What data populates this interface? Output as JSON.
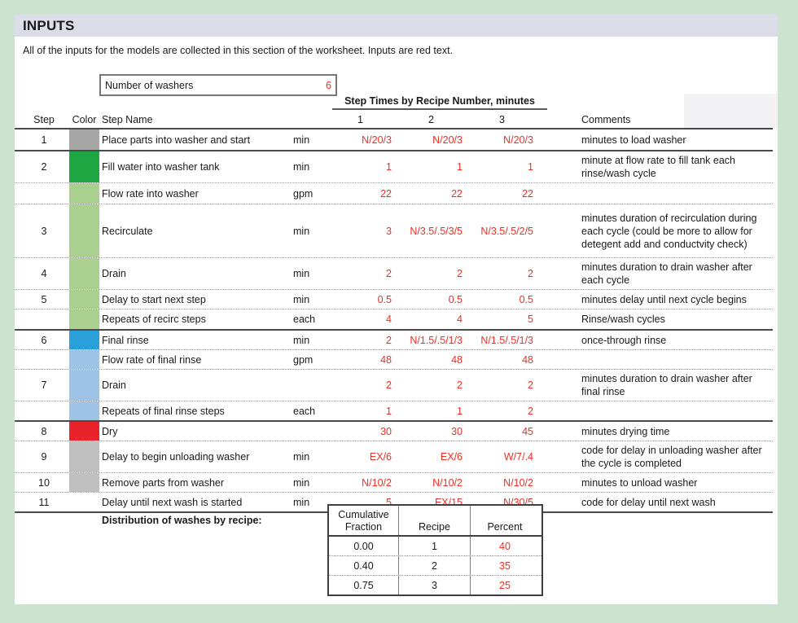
{
  "page": {
    "title": "INPUTS",
    "subtitle": "All of the inputs for the models are collected in this section of the worksheet. Inputs are red text."
  },
  "washers_box": {
    "label": "Number of washers",
    "value": "6"
  },
  "steps_table": {
    "group_header": "Step Times by Recipe Number, minutes",
    "headers": {
      "step": "Step",
      "color": "Color",
      "name": "Step Name",
      "recipes": [
        "1",
        "2",
        "3"
      ],
      "comments": "Comments"
    },
    "rows": [
      {
        "step": "1",
        "color": "#a6a6a6",
        "name": "Place parts into washer and start",
        "unit": "min",
        "values": [
          "N/20/3",
          "N/20/3",
          "N/20/3"
        ],
        "comment": "minutes to load washer",
        "sep": "solid"
      },
      {
        "step": "2",
        "color": "#1ea642",
        "name": "Fill water into washer tank",
        "unit": "min",
        "values": [
          "1",
          "1",
          "1"
        ],
        "comment": "minute at flow rate to fill tank each rinse/wash cycle",
        "sep": "dotted"
      },
      {
        "step": "",
        "color": "#a9d08e",
        "name": "Flow rate into washer",
        "unit": "gpm",
        "values": [
          "22",
          "22",
          "22"
        ],
        "comment": "",
        "sep": "dotted"
      },
      {
        "step": "3",
        "color": "#a9d08e",
        "name": "Recirculate",
        "unit": "min",
        "values": [
          "3",
          "N/3.5/.5/3/5",
          "N/3.5/.5/2/5"
        ],
        "comment": "minutes duration of recirculation during each cycle (could be more to allow for detegent add and conductvity check)",
        "sep": "dotted"
      },
      {
        "step": "4",
        "color": "#a9d08e",
        "name": "Drain",
        "unit": "min",
        "values": [
          "2",
          "2",
          "2"
        ],
        "comment": "minutes duration to drain washer after each cycle",
        "sep": "dotted"
      },
      {
        "step": "5",
        "color": "#a9d08e",
        "name": "Delay to start next step",
        "unit": "min",
        "values": [
          "0.5",
          "0.5",
          "0.5"
        ],
        "comment": "minutes delay until next cycle begins",
        "sep": "dotted"
      },
      {
        "step": "",
        "color": "#a9d08e",
        "name": "Repeats of recirc steps",
        "unit": "each",
        "values": [
          "4",
          "4",
          "5"
        ],
        "comment": "Rinse/wash cycles",
        "sep": "solid"
      },
      {
        "step": "6",
        "color": "#2aa0da",
        "name": "Final rinse",
        "unit": "min",
        "values": [
          "2",
          "N/1.5/.5/1/3",
          "N/1.5/.5/1/3"
        ],
        "comment": "once-through rinse",
        "sep": "dotted"
      },
      {
        "step": "",
        "color": "#9dc3e6",
        "name": "Flow rate of final rinse",
        "unit": "gpm",
        "values": [
          "48",
          "48",
          "48"
        ],
        "comment": "",
        "sep": "dotted"
      },
      {
        "step": "7",
        "color": "#9dc3e6",
        "name": "Drain",
        "unit": "",
        "values": [
          "2",
          "2",
          "2"
        ],
        "comment": "minutes duration to drain washer after final rinse",
        "sep": "dotted"
      },
      {
        "step": "",
        "color": "#9dc3e6",
        "name": "Repeats of final rinse steps",
        "unit": "each",
        "values": [
          "1",
          "1",
          "2"
        ],
        "comment": "",
        "sep": "solid"
      },
      {
        "step": "8",
        "color": "#e8232b",
        "name": "Dry",
        "unit": "",
        "values": [
          "30",
          "30",
          "45"
        ],
        "comment": "minutes drying time",
        "sep": "dotted"
      },
      {
        "step": "9",
        "color": "#bfbfbf",
        "name": "Delay to begin unloading washer",
        "unit": "min",
        "values": [
          "EX/6",
          "EX/6",
          "W/7/.4"
        ],
        "comment": "code for delay in unloading washer after the cycle is completed",
        "sep": "dotted"
      },
      {
        "step": "10",
        "color": "#bfbfbf",
        "name": "Remove parts from washer",
        "unit": "min",
        "values": [
          "N/10/2",
          "N/10/2",
          "N/10/2"
        ],
        "comment": "minutes to unload washer",
        "sep": "dotted"
      },
      {
        "step": "11",
        "color": null,
        "name": "Delay until next wash is started",
        "unit": "min",
        "values": [
          "5",
          "EX/15",
          "N/30/5"
        ],
        "comment": "code for delay until next wash",
        "sep": "solid"
      }
    ]
  },
  "distribution": {
    "label": "Distribution of washes by recipe:",
    "headers": [
      "Cumulative Fraction",
      "Recipe",
      "Percent"
    ],
    "rows": [
      [
        "0.00",
        "1",
        "40"
      ],
      [
        "0.40",
        "2",
        "35"
      ],
      [
        "0.75",
        "3",
        "25"
      ]
    ]
  },
  "colors": {
    "input_red": "#ee2e24",
    "mint_background": "#cce3d0",
    "title_bar": "#dcdde8"
  }
}
